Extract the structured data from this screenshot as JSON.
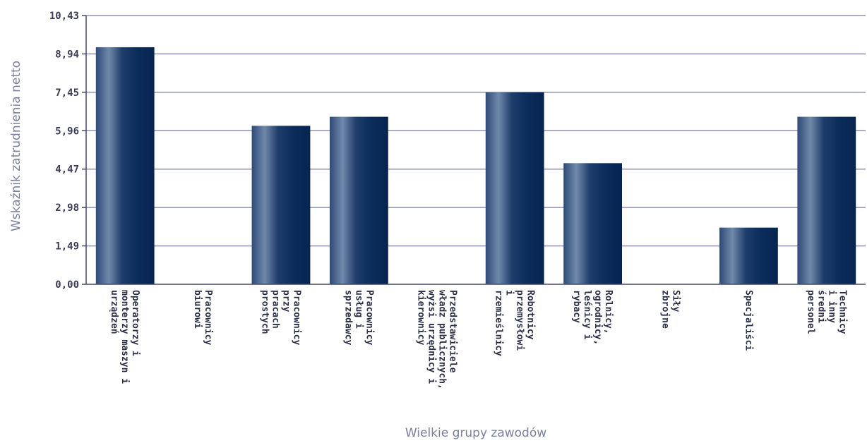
{
  "chart_data": {
    "type": "bar",
    "title": "",
    "xlabel": "Wielkie grupy zawodów",
    "ylabel": "Wskaźnik zatrudnienia netto",
    "ylim": [
      0,
      10.43
    ],
    "yticks": [
      "0,00",
      "1,49",
      "2,98",
      "4,47",
      "5,96",
      "7,45",
      "8,94",
      "10,43"
    ],
    "grid": true,
    "legend": "none",
    "categories": [
      [
        "Operatorzy i",
        "monterzy maszyn i",
        "urządzeń"
      ],
      [
        "Pracownicy",
        "biurowi"
      ],
      [
        "Pracownicy",
        "przy",
        "pracach",
        "prostych"
      ],
      [
        "Pracownicy",
        "usług i",
        "sprzedawcy"
      ],
      [
        "Przedstawiciele",
        "władz publicznych,",
        "wyżsi urzędnicy i",
        "kierownicy"
      ],
      [
        "Robotnicy",
        "przemysłowi",
        "i",
        "rzemieślnicy"
      ],
      [
        "Rolnicy,",
        "ogrodnicy,",
        "leśnicy i",
        "rybacy"
      ],
      [
        "Siły",
        "zbrojne"
      ],
      [
        "Specjaliści"
      ],
      [
        "Technicy",
        "i inny",
        "średni",
        "personel"
      ]
    ],
    "values": [
      9.2,
      0,
      6.15,
      6.5,
      0,
      7.45,
      4.7,
      0,
      2.2,
      6.5
    ],
    "colors": {
      "bar_dark": "#0b2d5c",
      "bar_light": "#6d87a8",
      "grid": "#8e93b6",
      "axis": "#44486a"
    }
  }
}
